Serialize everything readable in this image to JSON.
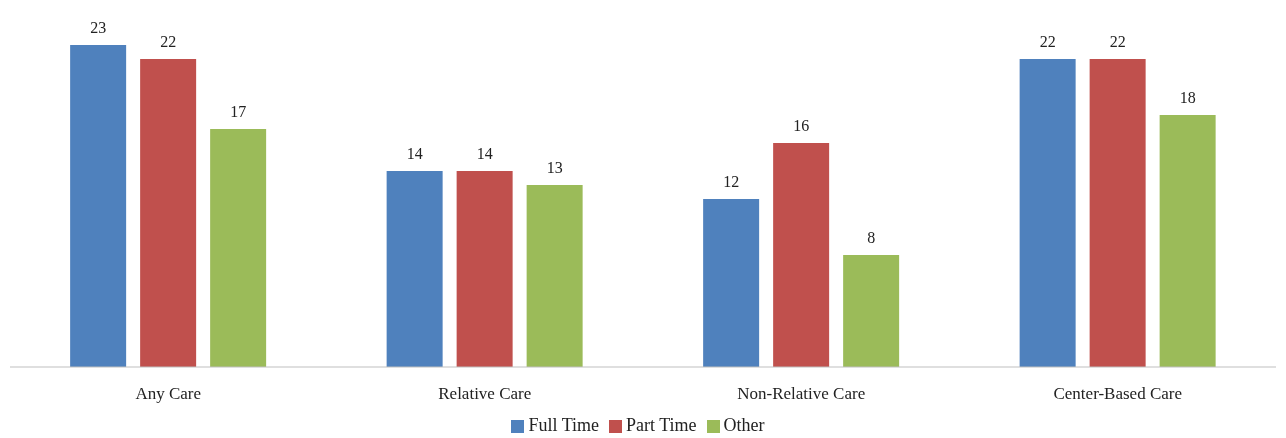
{
  "chart_data": {
    "type": "bar",
    "categories": [
      "Any Care",
      "Relative Care",
      "Non-Relative Care",
      "Center-Based Care"
    ],
    "series": [
      {
        "name": "Full Time",
        "color": "#4f81bd",
        "values": [
          23,
          14,
          12,
          22
        ]
      },
      {
        "name": "Part Time",
        "color": "#c0504d",
        "values": [
          22,
          14,
          16,
          22
        ]
      },
      {
        "name": "Other",
        "color": "#9bbb59",
        "values": [
          17,
          13,
          8,
          18
        ]
      }
    ],
    "data_labels": true,
    "legend": "bottom"
  }
}
